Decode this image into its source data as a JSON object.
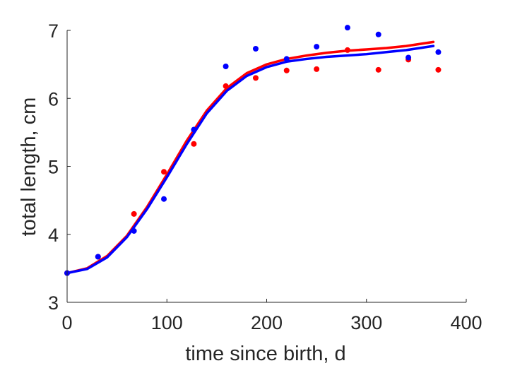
{
  "chart_data": {
    "type": "scatter",
    "title": "",
    "xlabel": "time since birth, d",
    "ylabel": "total length, cm",
    "xlim": [
      0,
      400
    ],
    "ylim": [
      3,
      7
    ],
    "xticks": [
      0,
      100,
      200,
      300,
      400
    ],
    "yticks": [
      3,
      4,
      5,
      6,
      7
    ],
    "grid": false,
    "legend": "none",
    "series": [
      {
        "kind": "points",
        "color": "#ff0000",
        "x": [
          0,
          31,
          67,
          97,
          127,
          159,
          189,
          220,
          250,
          281,
          312,
          342,
          372
        ],
        "y": [
          3.43,
          3.67,
          4.3,
          4.92,
          5.33,
          6.18,
          6.3,
          6.41,
          6.43,
          6.71,
          6.42,
          6.57,
          6.42
        ]
      },
      {
        "kind": "points",
        "color": "#0000ff",
        "x": [
          0,
          31,
          67,
          97,
          127,
          159,
          189,
          220,
          250,
          281,
          312,
          342,
          372
        ],
        "y": [
          3.43,
          3.67,
          4.05,
          4.52,
          5.54,
          6.47,
          6.73,
          6.58,
          6.76,
          7.04,
          6.94,
          6.6,
          6.68
        ]
      },
      {
        "kind": "line",
        "color": "#ff0000",
        "x": [
          0,
          20,
          40,
          60,
          80,
          100,
          120,
          140,
          160,
          180,
          200,
          220,
          240,
          260,
          280,
          300,
          320,
          340,
          367
        ],
        "y": [
          3.43,
          3.5,
          3.68,
          3.98,
          4.4,
          4.88,
          5.38,
          5.82,
          6.15,
          6.37,
          6.5,
          6.58,
          6.63,
          6.67,
          6.7,
          6.72,
          6.74,
          6.77,
          6.83
        ]
      },
      {
        "kind": "line",
        "color": "#0000ff",
        "x": [
          0,
          20,
          40,
          60,
          80,
          100,
          120,
          140,
          160,
          180,
          200,
          220,
          240,
          260,
          280,
          300,
          320,
          340,
          367
        ],
        "y": [
          3.43,
          3.49,
          3.66,
          3.96,
          4.37,
          4.84,
          5.33,
          5.78,
          6.11,
          6.33,
          6.46,
          6.54,
          6.58,
          6.61,
          6.63,
          6.65,
          6.68,
          6.71,
          6.77
        ]
      }
    ]
  }
}
